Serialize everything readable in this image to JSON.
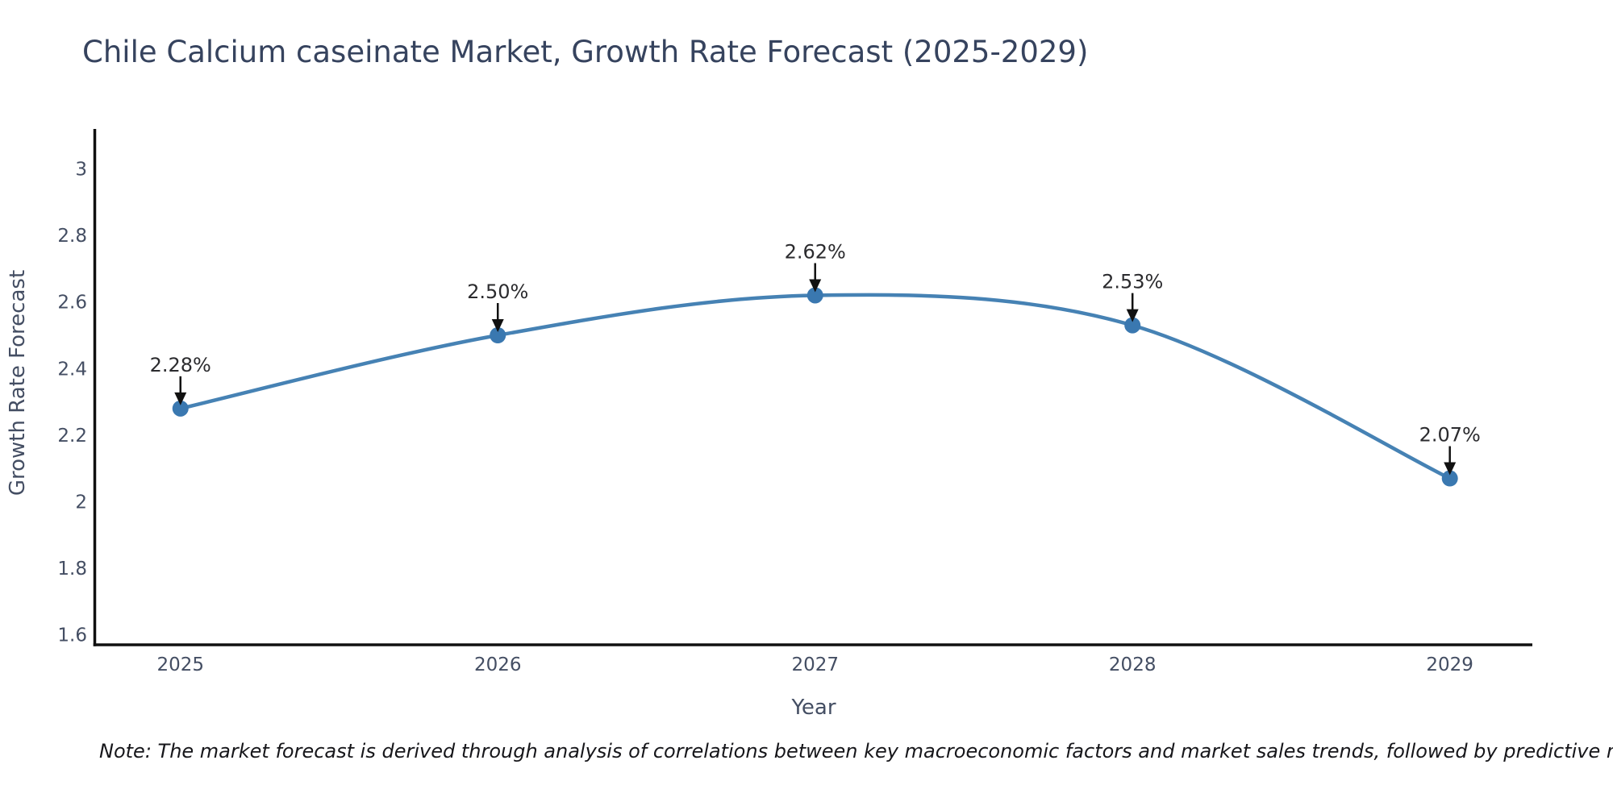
{
  "title": "Chile Calcium caseinate Market, Growth Rate Forecast (2025-2029)",
  "note": "Note: The market forecast is derived through analysis of correlations between key macroeconomic factors and market sales trends, followed by predictive modeling to project future sales",
  "chart_data": {
    "type": "line",
    "title": "Chile Calcium caseinate Market, Growth Rate Forecast (2025-2029)",
    "xlabel": "Year",
    "ylabel": "Growth Rate Forecast",
    "x": [
      2025,
      2026,
      2027,
      2028,
      2029
    ],
    "series": [
      {
        "name": "Growth Rate Forecast",
        "values": [
          2.28,
          2.5,
          2.62,
          2.53,
          2.07
        ]
      }
    ],
    "point_labels": [
      "2.28%",
      "2.50%",
      "2.62%",
      "2.53%",
      "2.07%"
    ],
    "xtick_labels": [
      "2025",
      "2026",
      "2027",
      "2028",
      "2029"
    ],
    "yticks": [
      1.6,
      1.8,
      2.0,
      2.2,
      2.4,
      2.6,
      2.8,
      3.0
    ],
    "ytick_labels": [
      "1.6",
      "1.8",
      "2",
      "2.2",
      "2.4",
      "2.6",
      "2.8",
      "3"
    ],
    "ylim": [
      1.57,
      3.12
    ],
    "xlim": [
      2024.73,
      2029.26
    ],
    "grid": false,
    "legend_position": "none",
    "smooth": true,
    "annotation_arrows": true
  },
  "colors": {
    "background": "#ffffff",
    "title": "#36435e",
    "tick_label": "#444e63",
    "axis_title": "#444e63",
    "axis_line": "#111111",
    "line": "#4682b4",
    "marker": "#3a78b0",
    "annotation_text": "#2b2b2e",
    "arrow": "#111111",
    "note_text": "#16161a"
  }
}
